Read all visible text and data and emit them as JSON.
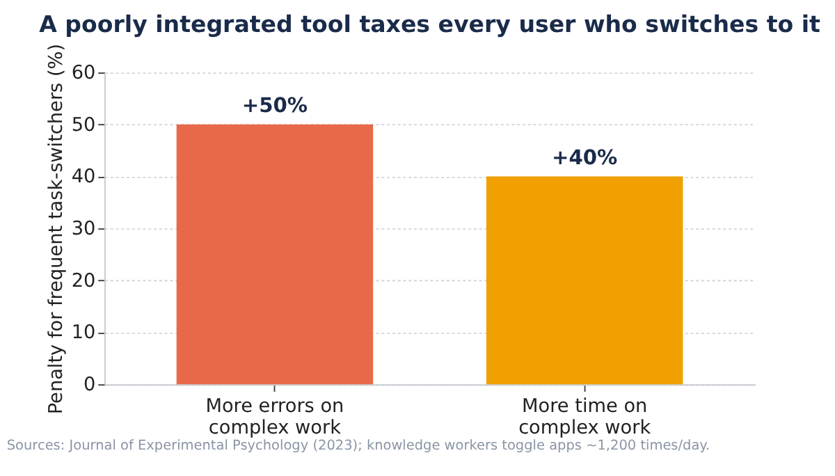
{
  "chart_data": {
    "type": "bar",
    "title": "A poorly integrated tool taxes every user who switches to it",
    "ylabel": "Penalty for frequent task-switchers (%)",
    "categories": [
      "More errors on\ncomplex work",
      "More time on\ncomplex work"
    ],
    "values": [
      50,
      40
    ],
    "colors": [
      "#e8694a",
      "#f0a000"
    ],
    "value_labels": [
      "+50%",
      "+40%"
    ],
    "ylim": [
      0,
      60
    ],
    "yticks": [
      0,
      10,
      20,
      30,
      40,
      50,
      60
    ],
    "grid": "y",
    "annotations": [
      "Sources: Journal of Experimental Psychology (2023); knowledge workers toggle apps ~1,200 times/day."
    ]
  }
}
